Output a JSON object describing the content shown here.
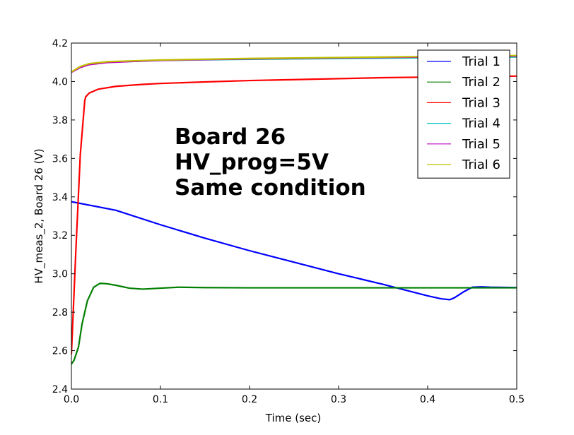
{
  "chart_data": {
    "type": "line",
    "xlabel": "Time (sec)",
    "ylabel": "HV_meas_2, Board 26 (V)",
    "xlim": [
      0.0,
      0.5
    ],
    "ylim": [
      2.4,
      4.2
    ],
    "xticks": [
      0.0,
      0.1,
      0.2,
      0.3,
      0.4,
      0.5
    ],
    "xtick_labels": [
      "0.0",
      "0.1",
      "0.2",
      "0.3",
      "0.4",
      "0.5"
    ],
    "yticks": [
      2.4,
      2.6,
      2.8,
      3.0,
      3.2,
      3.4,
      3.6,
      3.8,
      4.0,
      4.2
    ],
    "ytick_labels": [
      "2.4",
      "2.6",
      "2.8",
      "3.0",
      "3.2",
      "3.4",
      "3.6",
      "3.8",
      "4.0",
      "4.2"
    ],
    "grid": false,
    "legend_position": "top-right",
    "annotation": [
      "Board 26",
      "HV_prog=5V",
      "Same condition"
    ],
    "series": [
      {
        "name": "Trial 1",
        "color": "#0000ff",
        "x": [
          0.0,
          0.05,
          0.1,
          0.15,
          0.2,
          0.25,
          0.3,
          0.35,
          0.4,
          0.415,
          0.425,
          0.43,
          0.44,
          0.45,
          0.46,
          0.47,
          0.5
        ],
        "y": [
          3.375,
          3.33,
          3.255,
          3.185,
          3.12,
          3.06,
          3.0,
          2.945,
          2.885,
          2.87,
          2.865,
          2.875,
          2.905,
          2.93,
          2.932,
          2.93,
          2.928
        ]
      },
      {
        "name": "Trial 2",
        "color": "#008000",
        "x": [
          0.0,
          0.003,
          0.008,
          0.012,
          0.018,
          0.025,
          0.032,
          0.04,
          0.05,
          0.065,
          0.08,
          0.1,
          0.12,
          0.15,
          0.2,
          0.3,
          0.4,
          0.5
        ],
        "y": [
          2.53,
          2.55,
          2.62,
          2.74,
          2.86,
          2.93,
          2.95,
          2.948,
          2.94,
          2.925,
          2.92,
          2.925,
          2.93,
          2.928,
          2.927,
          2.927,
          2.927,
          2.927
        ]
      },
      {
        "name": "Trial 3",
        "color": "#ff0000",
        "x": [
          0.0,
          0.005,
          0.01,
          0.015,
          0.016,
          0.02,
          0.03,
          0.05,
          0.08,
          0.1,
          0.15,
          0.2,
          0.25,
          0.3,
          0.35,
          0.4,
          0.45,
          0.5
        ],
        "y": [
          2.58,
          3.12,
          3.62,
          3.9,
          3.92,
          3.94,
          3.96,
          3.975,
          3.985,
          3.99,
          3.998,
          4.005,
          4.01,
          4.015,
          4.02,
          4.023,
          4.026,
          4.028
        ]
      },
      {
        "name": "Trial 4",
        "color": "#00bfbf",
        "x": [
          0.0,
          0.01,
          0.02,
          0.04,
          0.07,
          0.1,
          0.15,
          0.2,
          0.3,
          0.4,
          0.5
        ],
        "y": [
          4.05,
          4.075,
          4.09,
          4.1,
          4.105,
          4.11,
          4.113,
          4.116,
          4.12,
          4.124,
          4.128
        ]
      },
      {
        "name": "Trial 5",
        "color": "#bf00bf",
        "x": [
          0.0,
          0.01,
          0.02,
          0.04,
          0.07,
          0.1,
          0.15,
          0.2,
          0.3,
          0.4,
          0.5
        ],
        "y": [
          4.048,
          4.073,
          4.088,
          4.099,
          4.105,
          4.11,
          4.114,
          4.118,
          4.123,
          4.128,
          4.132
        ]
      },
      {
        "name": "Trial 6",
        "color": "#bfbf00",
        "x": [
          0.0,
          0.01,
          0.02,
          0.04,
          0.07,
          0.1,
          0.15,
          0.2,
          0.3,
          0.4,
          0.5
        ],
        "y": [
          4.05,
          4.078,
          4.093,
          4.103,
          4.108,
          4.112,
          4.116,
          4.12,
          4.125,
          4.13,
          4.135
        ]
      }
    ]
  }
}
